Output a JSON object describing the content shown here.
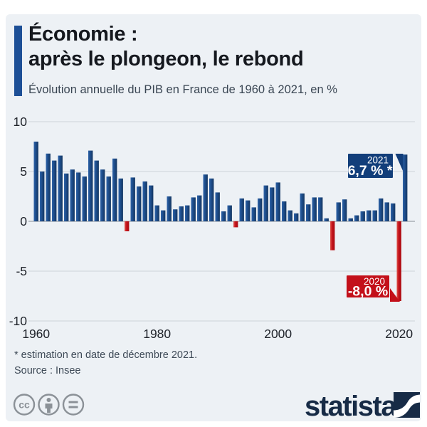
{
  "header": {
    "title_line1": "Économie :",
    "title_line2": "après le plongeon, le rebond",
    "subtitle": "Évolution annuelle du PIB en France de 1960 à 2021, en %"
  },
  "chart_data": {
    "type": "bar",
    "title": "Évolution annuelle du PIB en France de 1960 à 2021, en %",
    "xlabel": "",
    "ylabel": "",
    "ylim": [
      -10,
      10
    ],
    "yticks": [
      10,
      5,
      0,
      -5,
      -10
    ],
    "xticks": [
      1960,
      1980,
      2000,
      2020
    ],
    "grid": true,
    "years": [
      1960,
      1961,
      1962,
      1963,
      1964,
      1965,
      1966,
      1967,
      1968,
      1969,
      1970,
      1971,
      1972,
      1973,
      1974,
      1975,
      1976,
      1977,
      1978,
      1979,
      1980,
      1981,
      1982,
      1983,
      1984,
      1985,
      1986,
      1987,
      1988,
      1989,
      1990,
      1991,
      1992,
      1993,
      1994,
      1995,
      1996,
      1997,
      1998,
      1999,
      2000,
      2001,
      2002,
      2003,
      2004,
      2005,
      2006,
      2007,
      2008,
      2009,
      2010,
      2011,
      2012,
      2013,
      2014,
      2015,
      2016,
      2017,
      2018,
      2019,
      2020,
      2021
    ],
    "values": [
      8.0,
      5.0,
      6.8,
      6.1,
      6.6,
      4.8,
      5.2,
      4.9,
      4.5,
      7.1,
      6.1,
      5.2,
      4.5,
      6.3,
      4.3,
      -1.0,
      4.4,
      3.5,
      4.0,
      3.6,
      1.6,
      1.1,
      2.5,
      1.2,
      1.5,
      1.6,
      2.4,
      2.6,
      4.7,
      4.3,
      2.9,
      1.0,
      1.6,
      -0.6,
      2.3,
      2.1,
      1.4,
      2.3,
      3.6,
      3.4,
      3.9,
      2.0,
      1.1,
      0.8,
      2.8,
      1.7,
      2.4,
      2.4,
      0.3,
      -2.9,
      1.9,
      2.2,
      0.3,
      0.6,
      1.0,
      1.1,
      1.1,
      2.3,
      1.9,
      1.8,
      -8.0,
      6.7
    ],
    "annotations": [
      {
        "year_label": "2021",
        "value_label": "6,7 % *",
        "type": "highlight-positive"
      },
      {
        "year_label": "2020",
        "value_label": "-8,0 %",
        "type": "highlight-negative"
      }
    ],
    "colors": {
      "positive_bar": "#1d4c8a",
      "positive_bar_light": "#2e63a8",
      "positive_bar_dark": "#153761",
      "negative_bar": "#c3101a",
      "negative_bar_light": "#e0564d",
      "negative_bar_dark": "#a80d12",
      "annotation_positive_box": "#123e7a",
      "annotation_negative_box": "#c3101a",
      "gridline": "#cdd3d9",
      "zero_line": "#9ba2ab",
      "axis_text": "#20242b"
    }
  },
  "footer": {
    "note": "* estimation en date de décembre 2021.",
    "source": "Source : Insee",
    "brand": "statista",
    "license_icon_names": [
      "cc-icon",
      "attribution-icon",
      "no-derivatives-icon"
    ]
  }
}
